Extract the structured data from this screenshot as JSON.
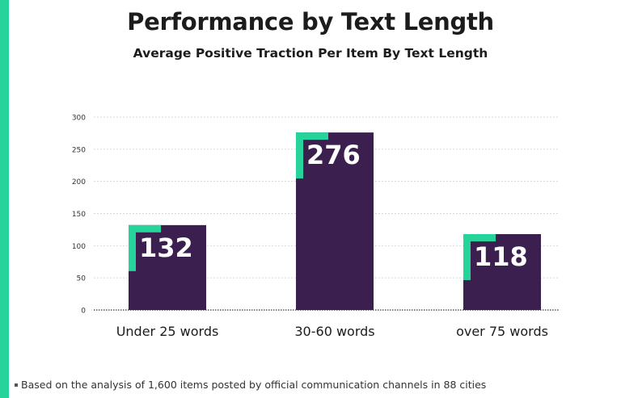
{
  "chart_data": {
    "type": "bar",
    "title": "Performance by Text Length",
    "subtitle": "Average Positive Traction Per Item By Text Length",
    "categories": [
      "Under 25 words",
      "30-60 words",
      "over 75 words"
    ],
    "values": [
      132,
      276,
      118
    ],
    "data_labels": [
      "132",
      "276",
      "118"
    ],
    "yticks": [
      "0",
      "50",
      "100",
      "150",
      "200",
      "250",
      "300"
    ],
    "ylim": [
      0,
      300
    ],
    "xlabel": "",
    "ylabel": "",
    "grid": true,
    "legend": "none",
    "colors": {
      "bar": "#3b1f4e",
      "accent": "#26d39a",
      "grid": "#d6d6d6",
      "text": "#1c1c1c"
    }
  },
  "footnote": "Based on the analysis of 1,600 items posted by official communication channels in 88  cities"
}
